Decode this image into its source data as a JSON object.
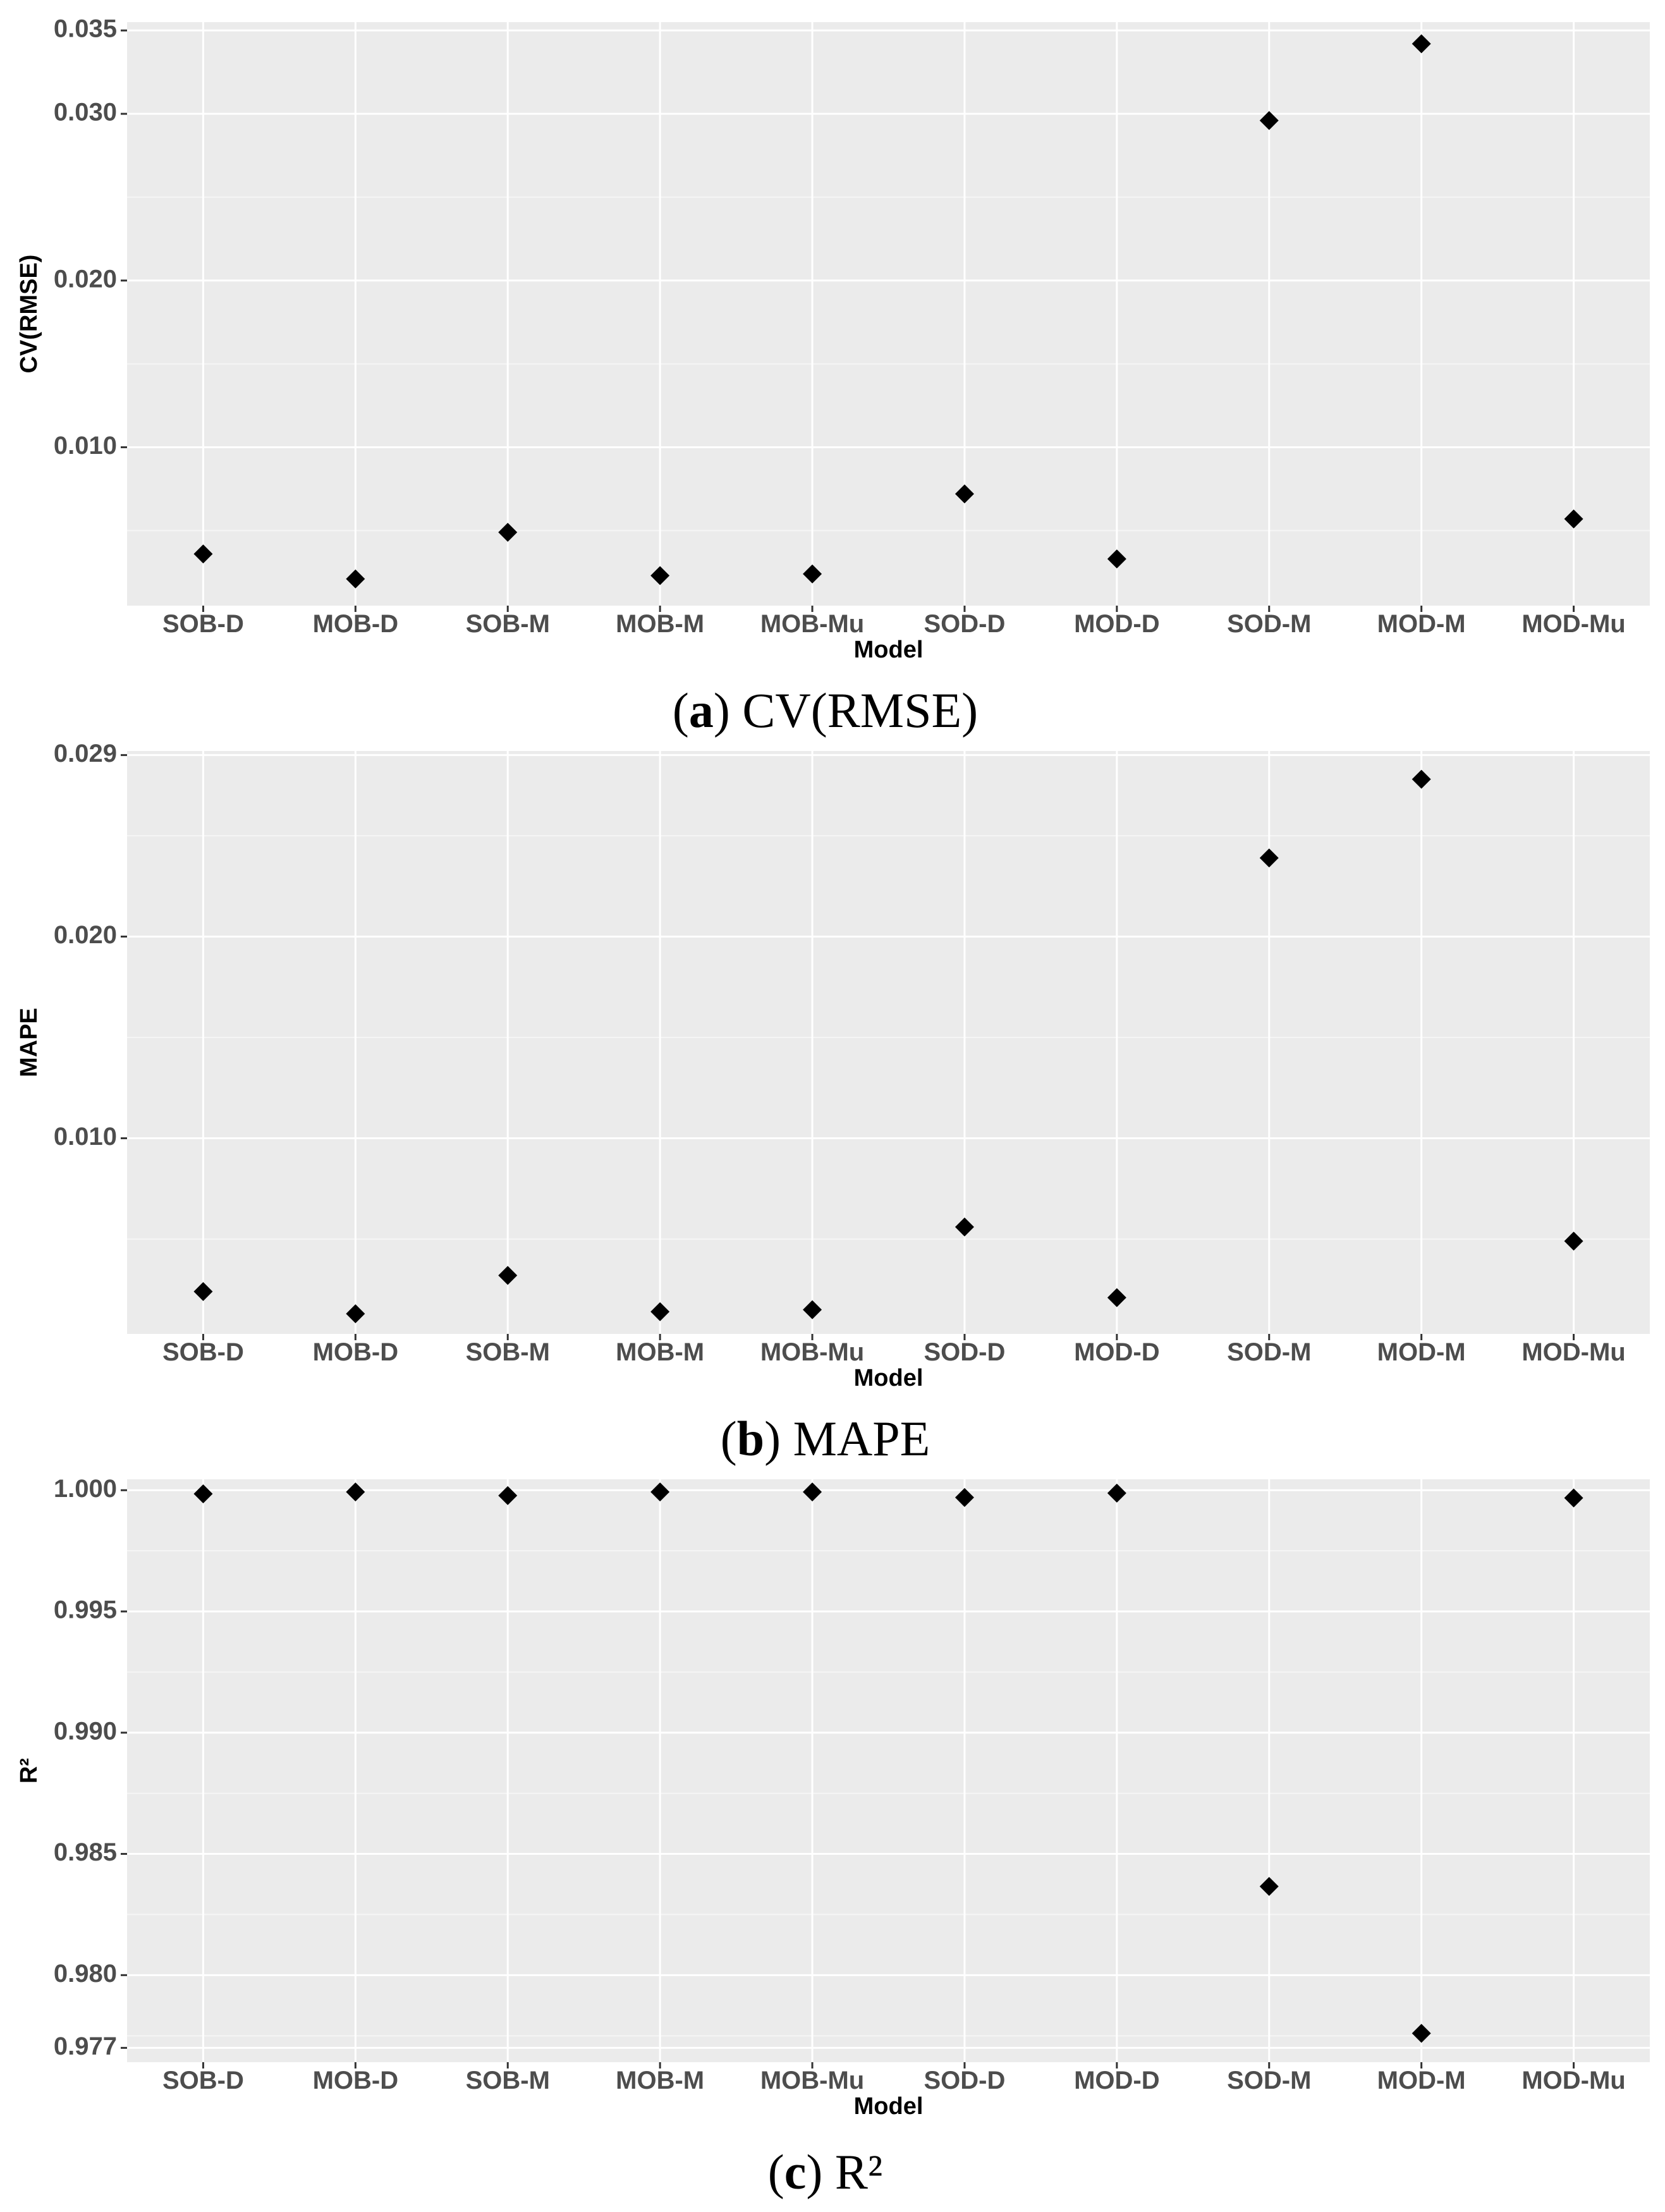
{
  "chart_data": [
    {
      "type": "scatter",
      "panel_letter": "a",
      "caption_text": "CV(RMSE)",
      "xlabel": "Model",
      "ylabel": "CV(RMSE)",
      "categories": [
        "SOB-D",
        "MOB-D",
        "SOB-M",
        "MOB-M",
        "MOB-Mu",
        "SOD-D",
        "MOD-D",
        "SOD-M",
        "MOD-M",
        "MOD-Mu"
      ],
      "values": [
        0.0036,
        0.0021,
        0.0049,
        0.0023,
        0.0024,
        0.0072,
        0.0033,
        0.0296,
        0.0342,
        0.0057
      ],
      "ylim": [
        0.0005,
        0.0355
      ],
      "yticks": [
        0.01,
        0.02,
        0.03,
        0.035
      ],
      "ytick_labels": [
        "0.010",
        "0.020",
        "0.030",
        "0.035"
      ],
      "minor_ticks": [
        0.005,
        0.015,
        0.025
      ],
      "grid": true,
      "marker": "diamond"
    },
    {
      "type": "scatter",
      "panel_letter": "b",
      "caption_text": "MAPE",
      "xlabel": "Model",
      "ylabel": "MAPE",
      "categories": [
        "SOB-D",
        "MOB-D",
        "SOB-M",
        "MOB-M",
        "MOB-Mu",
        "SOD-D",
        "MOD-D",
        "SOD-M",
        "MOD-M",
        "MOD-Mu"
      ],
      "values": [
        0.0024,
        0.0013,
        0.0032,
        0.0014,
        0.0015,
        0.0056,
        0.0021,
        0.0239,
        0.0278,
        0.0049
      ],
      "ylim": [
        0.0003,
        0.0292
      ],
      "yticks": [
        0.01,
        0.02,
        0.029
      ],
      "ytick_labels": [
        "0.010",
        "0.020",
        "0.029"
      ],
      "minor_ticks": [
        0.005,
        0.015,
        0.025
      ],
      "grid": true,
      "marker": "diamond"
    },
    {
      "type": "scatter",
      "panel_letter": "c",
      "caption_text": "R²",
      "xlabel": "Model",
      "ylabel": "R²",
      "categories": [
        "SOB-D",
        "MOB-D",
        "SOB-M",
        "MOB-M",
        "MOB-Mu",
        "SOD-D",
        "MOD-D",
        "SOD-M",
        "MOD-M",
        "MOD-Mu"
      ],
      "values": [
        0.99985,
        0.99993,
        0.99978,
        0.99993,
        0.99993,
        0.9997,
        0.99988,
        0.98366,
        0.9776,
        0.99968
      ],
      "ylim": [
        0.97641,
        1.00045
      ],
      "yticks": [
        0.977,
        0.98,
        0.985,
        0.99,
        0.995,
        1.0
      ],
      "ytick_labels": [
        "0.977",
        "0.980",
        "0.985",
        "0.990",
        "0.995",
        "1.000"
      ],
      "minor_ticks": [
        0.9775,
        0.9825,
        0.9875,
        0.9925,
        0.9975
      ],
      "grid": true,
      "marker": "diamond"
    }
  ],
  "colors": {
    "panel_background": "#ebebeb",
    "grid_major": "#ffffff",
    "grid_minor": "#f5f5f5",
    "marker": "#000000",
    "tick_text": "#4d4d4d"
  }
}
